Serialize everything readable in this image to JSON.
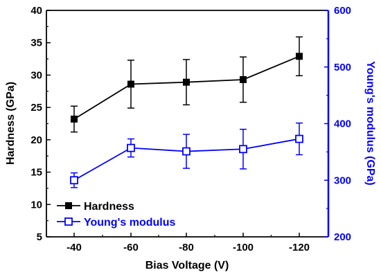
{
  "chart_data": {
    "type": "line",
    "categories": [
      "-40",
      "-60",
      "-80",
      "-100",
      "-120"
    ],
    "xlabel": "Bias Voltage (V)",
    "ylabel": "Hardness (GPa)",
    "y2label": "Young's modulus (GPa)",
    "ylim": [
      5,
      40
    ],
    "y2lim": [
      200,
      600
    ],
    "yticks": [
      "5",
      "10",
      "15",
      "20",
      "25",
      "30",
      "35",
      "40"
    ],
    "y2ticks": [
      "200",
      "300",
      "400",
      "500",
      "600"
    ],
    "legend_position": "bottom-left",
    "series": [
      {
        "name": "Hardness",
        "axis": "left",
        "marker": "filled-square",
        "color": "#000000",
        "values": [
          23.2,
          28.6,
          28.9,
          29.3,
          32.9
        ],
        "error": [
          2.0,
          3.7,
          3.5,
          3.5,
          3.0
        ]
      },
      {
        "name": "Young's modulus",
        "axis": "right",
        "marker": "open-square",
        "color": "#0000ff",
        "values": [
          300,
          357,
          351,
          355,
          373
        ],
        "error": [
          13,
          16,
          30,
          35,
          28
        ]
      }
    ]
  }
}
